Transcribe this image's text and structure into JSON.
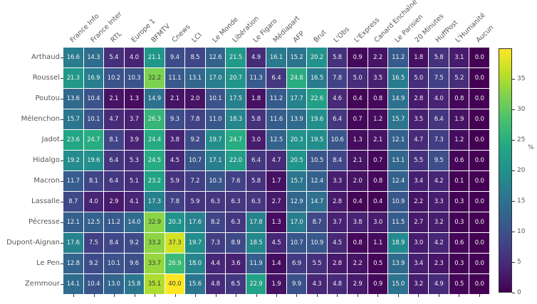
{
  "chart_data": {
    "type": "heatmap",
    "title": "",
    "rows": [
      "Arthaud",
      "Roussel",
      "Poutou",
      "Mélenchon",
      "Jadot",
      "Hidalgo",
      "Macron",
      "Lassalle",
      "Pécresse",
      "Dupont-Aignan",
      "Le Pen",
      "Zemmour"
    ],
    "columns": [
      "France Info",
      "France Inter",
      "RTL",
      "Europe 1",
      "BFMTV",
      "Cnews",
      "LCI",
      "Le Monde",
      "Libération",
      "Le Figaro",
      "Médiapart",
      "AFP",
      "Brut",
      "L'Obs",
      "L'Express",
      "Canard Enchaîné",
      "Le Parisien",
      "20 Minutes",
      "HuffPost",
      "L'Humanité",
      "Aucun"
    ],
    "values": [
      [
        16.6,
        14.3,
        5.4,
        4.0,
        21.1,
        9.4,
        8.5,
        12.6,
        21.5,
        4.9,
        16.1,
        15.2,
        20.2,
        5.8,
        0.9,
        2.2,
        11.2,
        1.8,
        5.8,
        3.1,
        0.0
      ],
      [
        21.3,
        16.9,
        10.2,
        10.3,
        32.2,
        11.1,
        13.1,
        17.0,
        20.7,
        11.3,
        6.4,
        24.8,
        16.5,
        7.8,
        5.0,
        3.5,
        16.5,
        5.0,
        7.5,
        5.2,
        0.0
      ],
      [
        13.6,
        10.4,
        2.1,
        1.3,
        14.9,
        2.1,
        2.0,
        10.1,
        17.5,
        1.8,
        11.2,
        17.7,
        22.6,
        4.6,
        0.4,
        0.8,
        14.9,
        2.8,
        4.0,
        0.8,
        0.0
      ],
      [
        15.7,
        10.1,
        4.7,
        3.7,
        26.3,
        9.3,
        7.8,
        11.0,
        18.3,
        5.8,
        11.6,
        13.9,
        19.6,
        6.4,
        0.7,
        1.2,
        15.7,
        3.5,
        6.4,
        1.9,
        0.0
      ],
      [
        23.6,
        24.7,
        8.1,
        3.9,
        24.4,
        3.8,
        9.2,
        19.7,
        24.7,
        3.0,
        12.5,
        20.3,
        19.5,
        10.6,
        1.3,
        2.1,
        12.1,
        4.7,
        7.3,
        1.2,
        0.0
      ],
      [
        19.2,
        19.6,
        6.4,
        5.3,
        24.5,
        4.5,
        10.7,
        17.1,
        22.0,
        6.4,
        4.7,
        20.5,
        10.5,
        8.4,
        2.1,
        0.7,
        13.1,
        5.5,
        9.5,
        0.6,
        0.0
      ],
      [
        11.7,
        8.1,
        6.4,
        5.1,
        23.2,
        5.9,
        7.2,
        10.3,
        7.6,
        5.8,
        1.7,
        15.7,
        12.4,
        3.3,
        2.0,
        0.8,
        12.4,
        3.4,
        4.2,
        0.1,
        0.0
      ],
      [
        8.7,
        4.0,
        2.9,
        4.1,
        17.3,
        7.8,
        5.9,
        6.3,
        6.3,
        6.3,
        2.7,
        12.9,
        14.7,
        2.8,
        0.4,
        0.4,
        10.9,
        2.2,
        3.3,
        0.3,
        0.0
      ],
      [
        12.1,
        12.5,
        11.2,
        14.0,
        32.9,
        20.3,
        17.6,
        8.2,
        6.3,
        17.8,
        1.3,
        17.0,
        8.7,
        3.7,
        3.8,
        3.0,
        11.5,
        2.7,
        3.2,
        0.3,
        0.0
      ],
      [
        17.6,
        7.5,
        8.4,
        9.2,
        33.2,
        37.3,
        19.7,
        7.3,
        8.9,
        18.5,
        4.5,
        10.7,
        10.9,
        4.5,
        0.8,
        1.1,
        18.9,
        3.0,
        4.2,
        0.6,
        0.0
      ],
      [
        12.8,
        9.2,
        10.1,
        9.6,
        33.7,
        26.9,
        18.0,
        4.4,
        3.6,
        11.9,
        1.4,
        6.9,
        5.5,
        2.8,
        2.2,
        0.5,
        13.9,
        3.4,
        2.3,
        0.3,
        0.0
      ],
      [
        14.1,
        10.4,
        13.0,
        15.8,
        35.1,
        40.0,
        15.6,
        4.8,
        6.5,
        22.9,
        1.9,
        9.9,
        4.3,
        4.8,
        2.9,
        0.9,
        15.0,
        3.2,
        4.9,
        0.5,
        0.0
      ]
    ],
    "vmin": 0,
    "vmax": 40,
    "colormap": "viridis",
    "colormap_low_color": "#440154",
    "colormap_high_color": "#fde725",
    "grid_line_color": "#ffffff",
    "colorbar": {
      "ticks": [
        0,
        5,
        10,
        15,
        20,
        25,
        30,
        35
      ],
      "label": "%"
    }
  }
}
